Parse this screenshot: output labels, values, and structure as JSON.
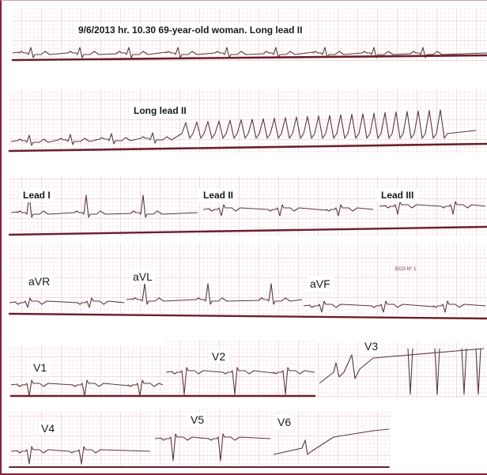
{
  "header": {
    "caption": "9/6/2013 hr. 10.30  69-year-old woman. Long lead II"
  },
  "strip2": {
    "label": "Long lead II"
  },
  "limb_leads": {
    "lead_i": "Lead I",
    "lead_ii": "Lead II",
    "lead_iii": "Lead III"
  },
  "augmented_leads": {
    "avr": "aVR",
    "avl": "aVL",
    "avf": "aVF",
    "stamp": "ECG N° 1"
  },
  "precordial_leads": {
    "v1": "V1",
    "v2": "V2",
    "v3": "V3",
    "v4": "V4",
    "v5": "V5",
    "v6": "V6"
  },
  "colors": {
    "grid": "#e8b4bc",
    "grid_major": "#d98e9b",
    "trace": "#5a3a3e",
    "baseline": "#6b1f2a",
    "frame": "#8b1d3a"
  }
}
